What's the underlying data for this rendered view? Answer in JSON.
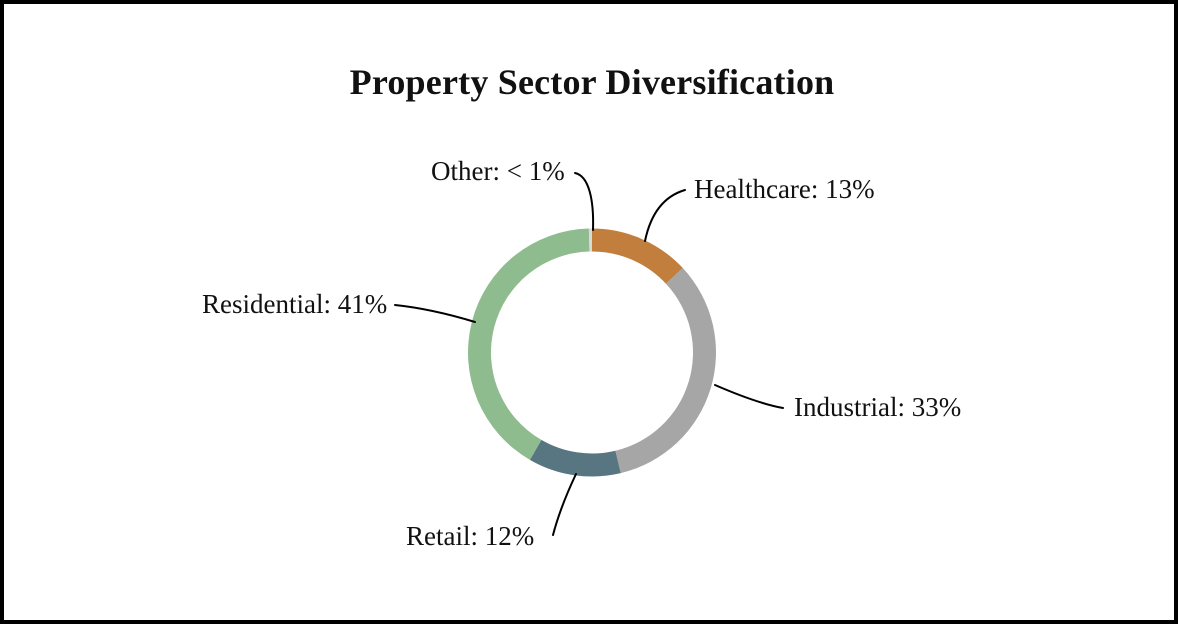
{
  "chart_data": {
    "type": "pie",
    "variant": "donut",
    "title": "Property Sector Diversification",
    "direction": "clockwise",
    "start_angle_deg": 0,
    "legend_position": "none",
    "labels_style": "outside-callouts",
    "segments": [
      {
        "name": "Healthcare",
        "value": 13,
        "display": "13%",
        "label_text": "Healthcare: 13%",
        "color": "#C17E3D"
      },
      {
        "name": "Industrial",
        "value": 33,
        "display": "33%",
        "label_text": "Industrial: 33%",
        "color": "#A6A6A6"
      },
      {
        "name": "Retail",
        "value": 12,
        "display": "12%",
        "label_text": "Retail: 12%",
        "color": "#587682"
      },
      {
        "name": "Residential",
        "value": 41,
        "display": "41%",
        "label_text": "Residential: 41%",
        "color": "#8FBC8F"
      },
      {
        "name": "Other",
        "value": 0.4,
        "display": "< 1%",
        "label_text": "Other: < 1%",
        "color": "#D9D9D9"
      }
    ],
    "colors": {
      "healthcare": "#C17E3D",
      "industrial": "#A6A6A6",
      "retail": "#587682",
      "residential": "#8FBC8F",
      "text": "#111111",
      "border": "#000000",
      "background": "#FFFFFF"
    }
  }
}
